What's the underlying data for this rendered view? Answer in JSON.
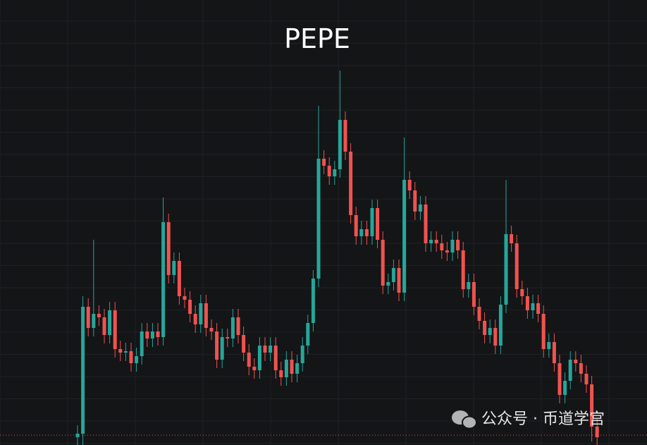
{
  "chart_data": {
    "type": "candlestick",
    "title": "PEPE",
    "watermark": "公众号 · 币道学宫",
    "up_color": "#26a69a",
    "down_color": "#ef5350",
    "grid": true,
    "ylim": [
      0,
      631
    ],
    "open": [
      11,
      16,
      196,
      166,
      186,
      181,
      156,
      191,
      136,
      131,
      133,
      116,
      126,
      161,
      151,
      161,
      153,
      316,
      241,
      261,
      211,
      206,
      186,
      171,
      201,
      166,
      161,
      121,
      153,
      151,
      181,
      156,
      131,
      111,
      106,
      141,
      131,
      141,
      106,
      96,
      121,
      101,
      116,
      141,
      173,
      236,
      406,
      396,
      381,
      391,
      461,
      416,
      326,
      296,
      306,
      296,
      336,
      291,
      226,
      231,
      251,
      216,
      376,
      361,
      331,
      341,
      286,
      291,
      286,
      276,
      273,
      291,
      276,
      221,
      231,
      196,
      176,
      156,
      166,
      141,
      199,
      299,
      286,
      221,
      211,
      191,
      201,
      186,
      136,
      146,
      116,
      71,
      91,
      121,
      116,
      101,
      86,
      26
    ],
    "high": [
      28,
      211,
      208,
      291,
      198,
      193,
      203,
      203,
      148,
      145,
      145,
      138,
      173,
      173,
      173,
      173,
      351,
      328,
      273,
      273,
      223,
      218,
      198,
      213,
      213,
      178,
      173,
      165,
      165,
      193,
      193,
      168,
      143,
      123,
      153,
      153,
      153,
      153,
      118,
      133,
      133,
      128,
      153,
      185,
      248,
      481,
      418,
      408,
      403,
      531,
      473,
      428,
      338,
      318,
      318,
      348,
      348,
      303,
      243,
      263,
      263,
      436,
      388,
      373,
      353,
      353,
      303,
      303,
      298,
      288,
      303,
      303,
      288,
      243,
      243,
      208,
      188,
      178,
      178,
      211,
      376,
      311,
      298,
      233,
      223,
      213,
      213,
      198,
      158,
      158,
      128,
      103,
      133,
      133,
      128,
      113,
      98,
      38
    ],
    "low": [
      0,
      0,
      154,
      154,
      169,
      144,
      144,
      124,
      119,
      119,
      104,
      104,
      114,
      139,
      139,
      141,
      141,
      229,
      229,
      199,
      194,
      174,
      159,
      159,
      154,
      149,
      109,
      109,
      139,
      139,
      144,
      119,
      99,
      94,
      94,
      119,
      119,
      94,
      84,
      84,
      89,
      89,
      104,
      129,
      161,
      224,
      384,
      369,
      369,
      379,
      404,
      314,
      284,
      284,
      284,
      284,
      279,
      214,
      214,
      219,
      204,
      204,
      349,
      319,
      319,
      274,
      274,
      274,
      264,
      261,
      261,
      264,
      209,
      209,
      184,
      164,
      144,
      144,
      129,
      129,
      187,
      274,
      209,
      199,
      179,
      179,
      174,
      124,
      124,
      104,
      59,
      59,
      79,
      104,
      89,
      74,
      5,
      0
    ],
    "close": [
      16,
      196,
      166,
      186,
      181,
      156,
      191,
      136,
      131,
      133,
      116,
      126,
      161,
      151,
      161,
      153,
      316,
      241,
      261,
      211,
      206,
      186,
      171,
      201,
      166,
      161,
      121,
      153,
      151,
      181,
      156,
      131,
      111,
      106,
      141,
      131,
      141,
      106,
      96,
      121,
      101,
      116,
      141,
      173,
      236,
      406,
      396,
      381,
      391,
      461,
      416,
      326,
      296,
      306,
      296,
      336,
      291,
      226,
      231,
      251,
      216,
      376,
      361,
      331,
      341,
      286,
      291,
      286,
      276,
      273,
      291,
      276,
      221,
      231,
      196,
      176,
      156,
      166,
      141,
      199,
      299,
      286,
      221,
      211,
      191,
      201,
      186,
      136,
      146,
      116,
      71,
      91,
      121,
      116,
      101,
      86,
      26,
      11
    ]
  }
}
